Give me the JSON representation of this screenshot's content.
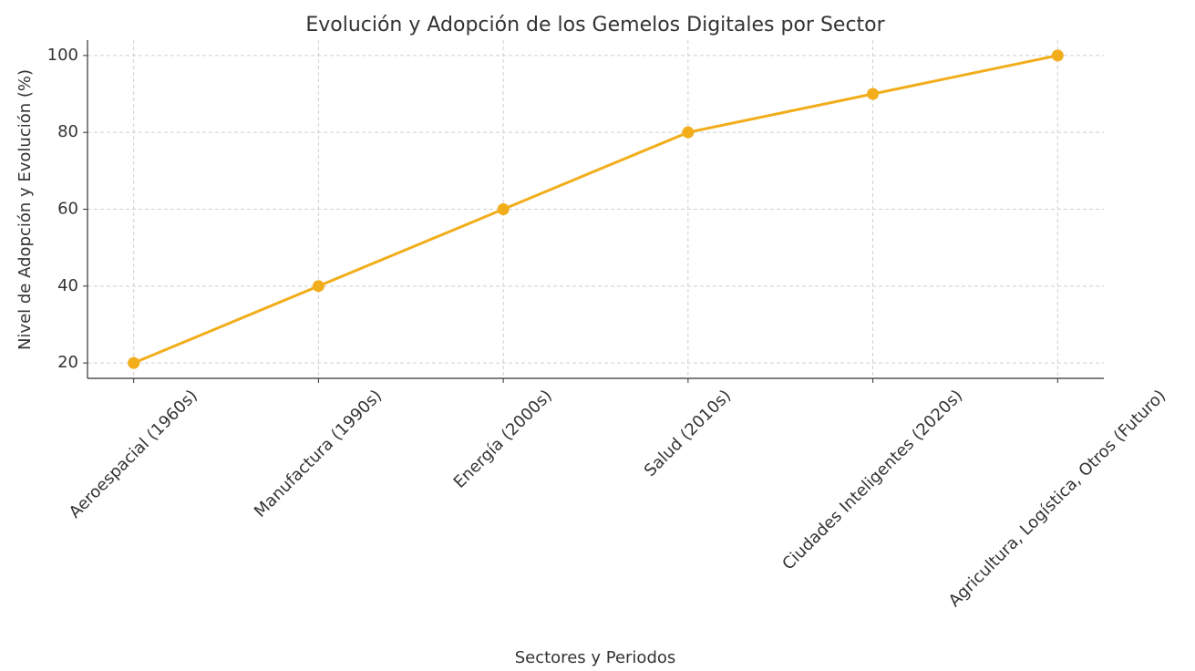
{
  "chart_data": {
    "type": "line",
    "title": "Evolución y Adopción de los Gemelos Digitales por Sector",
    "x_label": "Sectores y Periodos",
    "y_label": "Nivel de Adopción y Evolución (%)",
    "categories": [
      "Aeroespacial (1960s)",
      "Manufactura (1990s)",
      "Energía (2000s)",
      "Salud (2010s)",
      "Ciudades Inteligentes (2020s)",
      "Agricultura, Logística, Otros (Futuro)"
    ],
    "values": [
      20,
      40,
      60,
      80,
      90,
      100
    ],
    "color": "#f2ad1b",
    "ylim": [
      16,
      104
    ],
    "yticks": [
      20,
      40,
      60,
      80,
      100
    ],
    "grid": true
  }
}
